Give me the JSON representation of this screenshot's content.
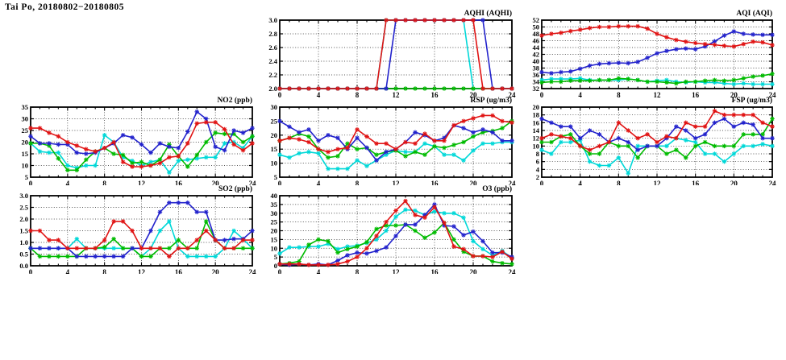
{
  "page": {
    "title": "Tai Po, 20180802−20180805"
  },
  "colors": {
    "red": "#e01313",
    "blue": "#2222cc",
    "green": "#00bb00",
    "cyan": "#00d8d8"
  },
  "x_hours": [
    0,
    1,
    2,
    3,
    4,
    5,
    6,
    7,
    8,
    9,
    10,
    11,
    12,
    13,
    14,
    15,
    16,
    17,
    18,
    19,
    20,
    21,
    22,
    23,
    24
  ],
  "chart_data": [
    {
      "type": "line",
      "id": "aqhi",
      "title": "AQHI (AQHI)",
      "xlabel": "hour",
      "x_range": [
        0,
        24
      ],
      "x_tick_step": 4,
      "y_range": [
        2.0,
        3.0
      ],
      "y_tick_step": 0.2,
      "y_decimals": 1,
      "grid": true,
      "series": [
        {
          "name": "cyan",
          "values": [
            2,
            2,
            2,
            2,
            2,
            2,
            2,
            2,
            2,
            2,
            2,
            3,
            3,
            3,
            3,
            3,
            3,
            3,
            3,
            3,
            2,
            2,
            2,
            2,
            2
          ]
        },
        {
          "name": "green",
          "values": [
            2,
            2,
            2,
            2,
            2,
            2,
            2,
            2,
            2,
            2,
            2,
            2,
            2,
            2,
            2,
            2,
            2,
            2,
            2,
            2,
            2,
            2,
            2,
            2,
            2
          ]
        },
        {
          "name": "blue",
          "values": [
            2,
            2,
            2,
            2,
            2,
            2,
            2,
            2,
            2,
            2,
            2,
            2,
            3,
            3,
            3,
            3,
            3,
            3,
            3,
            3,
            3,
            3,
            2,
            2,
            2
          ]
        },
        {
          "name": "red",
          "values": [
            2,
            2,
            2,
            2,
            2,
            2,
            2,
            2,
            2,
            2,
            2,
            3,
            3,
            3,
            3,
            3,
            3,
            3,
            3,
            3,
            3,
            2,
            2,
            2,
            2
          ]
        }
      ]
    },
    {
      "type": "line",
      "id": "aqi",
      "title": "AQI (AQI)",
      "xlabel": "hour",
      "x_range": [
        0,
        24
      ],
      "x_tick_step": 4,
      "y_range": [
        32,
        52
      ],
      "y_tick_step": 2,
      "y_decimals": 0,
      "grid": true,
      "series": [
        {
          "name": "cyan",
          "values": [
            34.5,
            34.8,
            34.8,
            34.8,
            35,
            34.5,
            34.5,
            34.5,
            34.5,
            34.8,
            34.5,
            34,
            34.3,
            34.5,
            34,
            33.8,
            34,
            33.8,
            33.8,
            33.5,
            33.3,
            33.5,
            33.3,
            33.3,
            33.3
          ]
        },
        {
          "name": "green",
          "values": [
            33.8,
            34,
            34,
            34.3,
            34.3,
            34.3,
            34.5,
            34.5,
            35,
            34.8,
            34.5,
            34,
            34,
            33.8,
            33.5,
            34,
            34,
            34.3,
            34.5,
            34.3,
            34.5,
            35,
            35.5,
            35.8,
            36.3
          ]
        },
        {
          "name": "blue",
          "values": [
            36.8,
            36.5,
            36.8,
            37,
            37.8,
            38.7,
            39.2,
            39.4,
            39.5,
            39.4,
            39.8,
            41,
            42.3,
            43,
            43.5,
            43.7,
            43.5,
            44.3,
            45.8,
            47.5,
            48.7,
            48,
            47.8,
            47.7,
            47.7
          ]
        },
        {
          "name": "red",
          "values": [
            47.5,
            48,
            48.3,
            48.8,
            49.2,
            49.7,
            50,
            50,
            50.2,
            50.2,
            50.2,
            49.5,
            48,
            47,
            46.2,
            45.7,
            45.3,
            45,
            44.8,
            44.5,
            44.3,
            45,
            45.7,
            45.5,
            44.7
          ]
        }
      ]
    },
    {
      "type": "line",
      "id": "no2",
      "title": "NO2 (ppb)",
      "xlabel": "hour",
      "x_range": [
        0,
        24
      ],
      "x_tick_step": 4,
      "y_range": [
        5,
        35
      ],
      "y_tick_step": 5,
      "y_decimals": 0,
      "grid": true,
      "series": [
        {
          "name": "cyan",
          "values": [
            19.5,
            16,
            15.5,
            15.5,
            10,
            9,
            10,
            10,
            23,
            20,
            13.5,
            12,
            10,
            11.5,
            12.5,
            7,
            12,
            12.5,
            13,
            13.5,
            13.5,
            19.5,
            20,
            17.5,
            22.5
          ]
        },
        {
          "name": "green",
          "values": [
            19.5,
            19.5,
            18.5,
            13,
            8,
            8,
            12.5,
            16,
            17.5,
            15,
            14.5,
            11,
            11.5,
            10,
            12.5,
            19,
            14,
            9.5,
            14.5,
            20,
            24,
            23.5,
            23.5,
            20,
            22.5
          ]
        },
        {
          "name": "blue",
          "values": [
            22.5,
            19.5,
            19.5,
            19,
            19,
            15.5,
            15,
            15.5,
            17.5,
            19.5,
            23,
            22,
            19,
            15.5,
            19.5,
            18,
            17.5,
            24.5,
            33,
            30,
            18,
            16.5,
            25,
            24,
            26
          ]
        },
        {
          "name": "red",
          "values": [
            26,
            26,
            24,
            22.5,
            20,
            18.5,
            17,
            16,
            17.5,
            20,
            11.5,
            9.5,
            9.5,
            10,
            11,
            13.5,
            14,
            19.5,
            28,
            28.5,
            28.5,
            25.5,
            19,
            16.5,
            19.5
          ]
        }
      ]
    },
    {
      "type": "line",
      "id": "rsp",
      "title": "RSP (ug/m3)",
      "xlabel": "hour",
      "x_range": [
        0,
        24
      ],
      "x_tick_step": 4,
      "y_range": [
        5,
        30
      ],
      "y_tick_step": 5,
      "y_decimals": 0,
      "grid": true,
      "series": [
        {
          "name": "cyan",
          "values": [
            13,
            12,
            13.5,
            14,
            13.5,
            8,
            8,
            8,
            11,
            9,
            11,
            13,
            14.5,
            14,
            14,
            17,
            16,
            13,
            13,
            11,
            14.5,
            17,
            17,
            17.5,
            17.5
          ]
        },
        {
          "name": "green",
          "values": [
            18,
            19,
            20.5,
            19.5,
            15,
            12,
            12.5,
            17,
            15,
            15.5,
            13,
            14,
            14.5,
            12.5,
            14,
            13,
            16,
            15.5,
            16.5,
            17.5,
            19.5,
            21,
            21.5,
            22.5,
            25
          ]
        },
        {
          "name": "blue",
          "values": [
            25,
            23,
            21,
            22,
            18,
            20,
            19,
            15,
            19,
            15.5,
            11,
            14,
            15,
            17.5,
            21,
            20,
            18,
            19,
            23.5,
            22.5,
            21,
            22,
            21,
            18,
            18
          ]
        },
        {
          "name": "red",
          "values": [
            18,
            19,
            18.5,
            17.5,
            15,
            14,
            15,
            15.5,
            22,
            19.5,
            17,
            17,
            15,
            17.5,
            17,
            20.5,
            18,
            18,
            23.5,
            25,
            26,
            27,
            27,
            25,
            24.5
          ]
        }
      ]
    },
    {
      "type": "line",
      "id": "fsp",
      "title": "FSP (ug/m3)",
      "xlabel": "hour",
      "x_range": [
        0,
        24
      ],
      "x_tick_step": 4,
      "y_range": [
        2,
        20
      ],
      "y_tick_step": 2,
      "y_decimals": 0,
      "grid": true,
      "series": [
        {
          "name": "cyan",
          "values": [
            9,
            8,
            11,
            11,
            11.5,
            6,
            5,
            5,
            7,
            3,
            10,
            10,
            10,
            10,
            12,
            11.5,
            11,
            8,
            8,
            6,
            8,
            10,
            10,
            10.5,
            10
          ]
        },
        {
          "name": "green",
          "values": [
            11,
            11,
            12.5,
            13,
            10,
            8,
            8,
            11,
            10,
            10,
            7,
            10,
            10,
            8,
            9,
            7,
            10,
            11,
            10,
            10,
            10,
            13,
            13,
            13,
            17
          ]
        },
        {
          "name": "blue",
          "values": [
            17,
            16,
            15,
            15,
            12,
            14,
            13,
            11,
            12,
            11,
            9,
            10,
            10,
            12,
            15,
            14,
            12,
            13,
            16,
            17,
            15,
            16,
            15.5,
            12,
            12
          ]
        },
        {
          "name": "red",
          "values": [
            12,
            13,
            12.5,
            12,
            10,
            9,
            10,
            11,
            16,
            14,
            12,
            13,
            11,
            12.5,
            12,
            16,
            15,
            15,
            19,
            18,
            18,
            18,
            18,
            16,
            15
          ]
        }
      ]
    },
    {
      "type": "line",
      "id": "so2",
      "title": "SO2 (ppb)",
      "xlabel": "hour",
      "x_range": [
        0,
        24
      ],
      "x_tick_step": 4,
      "y_range": [
        0.0,
        3.0
      ],
      "y_tick_step": 0.5,
      "y_decimals": 1,
      "grid": true,
      "series": [
        {
          "name": "cyan",
          "values": [
            0.75,
            0.75,
            0.75,
            0.75,
            0.75,
            1.15,
            0.75,
            0.75,
            0.75,
            0.75,
            0.75,
            0.75,
            0.4,
            0.75,
            1.5,
            1.9,
            0.75,
            0.4,
            0.4,
            0.4,
            0.4,
            0.75,
            1.5,
            1.15,
            0.75
          ]
        },
        {
          "name": "green",
          "values": [
            0.75,
            0.4,
            0.4,
            0.4,
            0.4,
            0.4,
            0.75,
            0.75,
            0.8,
            1.15,
            0.75,
            0.75,
            0.4,
            0.4,
            0.75,
            0.75,
            1.1,
            0.75,
            0.75,
            1.9,
            1.1,
            0.75,
            0.75,
            0.75,
            0.75
          ]
        },
        {
          "name": "blue",
          "values": [
            0.75,
            0.75,
            0.75,
            0.75,
            0.75,
            0.4,
            0.4,
            0.4,
            0.4,
            0.4,
            0.4,
            0.75,
            0.75,
            1.5,
            2.3,
            2.7,
            2.7,
            2.7,
            2.3,
            2.3,
            1.1,
            1.1,
            1.15,
            1.15,
            1.5
          ]
        },
        {
          "name": "red",
          "values": [
            1.5,
            1.5,
            1.1,
            1.1,
            0.75,
            0.75,
            0.75,
            0.75,
            1.1,
            1.9,
            1.9,
            1.5,
            0.75,
            0.75,
            0.75,
            0.4,
            0.75,
            0.75,
            1.1,
            1.5,
            1.1,
            0.75,
            0.75,
            1.1,
            1.1
          ]
        }
      ]
    },
    {
      "type": "line",
      "id": "o3",
      "title": "O3 (ppb)",
      "xlabel": "hour",
      "x_range": [
        0,
        24
      ],
      "x_tick_step": 4,
      "y_range": [
        0,
        40
      ],
      "y_tick_step": 5,
      "y_decimals": 0,
      "grid": true,
      "series": [
        {
          "name": "cyan",
          "values": [
            7,
            10.5,
            10.5,
            11,
            11,
            12.5,
            9.5,
            11,
            11.5,
            13,
            15,
            20,
            28,
            32,
            31.5,
            29,
            31,
            30,
            30,
            27.5,
            14,
            9.5,
            6,
            8.5,
            4.5
          ]
        },
        {
          "name": "green",
          "values": [
            1,
            1.5,
            2.5,
            12,
            15,
            14,
            7.5,
            9.5,
            11,
            13.5,
            21,
            23,
            23,
            23.5,
            20,
            16,
            19,
            24.5,
            15,
            8,
            5.5,
            5.5,
            2.5,
            1.5,
            1
          ]
        },
        {
          "name": "blue",
          "values": [
            1,
            0.5,
            1,
            0.5,
            1,
            0.5,
            3,
            6,
            7.5,
            7,
            8.5,
            10.5,
            17,
            23.5,
            23.5,
            29,
            35,
            23,
            22.5,
            17.5,
            19.5,
            14,
            7.5,
            7.5,
            5
          ]
        },
        {
          "name": "red",
          "values": [
            1,
            1,
            1,
            0.5,
            0.5,
            0.5,
            1,
            2.5,
            5,
            10,
            17,
            25,
            31.5,
            37,
            29,
            27.5,
            33.5,
            24.5,
            11,
            9.5,
            5.5,
            5.5,
            5,
            8,
            4
          ]
        }
      ]
    }
  ]
}
